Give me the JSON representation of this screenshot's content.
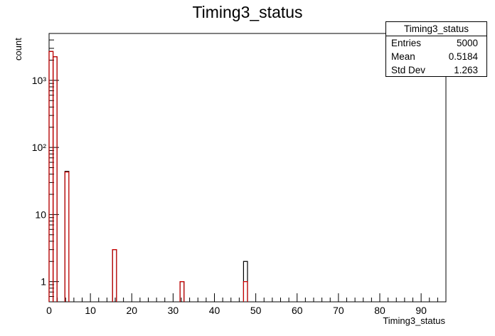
{
  "chart_data": {
    "type": "bar",
    "title": "Timing3_status",
    "xlabel": "Timing3_status",
    "ylabel": "count",
    "xlim": [
      0,
      96
    ],
    "ylim": [
      0.5,
      5000
    ],
    "log_y": true,
    "grid": false,
    "x_ticks": [
      0,
      10,
      20,
      30,
      40,
      50,
      60,
      70,
      80,
      90
    ],
    "y_ticks": [
      {
        "value": 1,
        "label": "1"
      },
      {
        "value": 10,
        "label": "10"
      },
      {
        "value": 100,
        "label": "10²"
      },
      {
        "value": 1000,
        "label": "10³"
      }
    ],
    "bin_width": 0.96,
    "series": [
      {
        "color": "#000000",
        "bins": [
          {
            "x": 0.0,
            "value": 2700
          },
          {
            "x": 0.96,
            "value": 2250
          },
          {
            "x": 3.84,
            "value": 44
          },
          {
            "x": 15.36,
            "value": 3
          },
          {
            "x": 31.68,
            "value": 1
          },
          {
            "x": 47.04,
            "value": 2
          }
        ]
      },
      {
        "color": "#cc0000",
        "bins": [
          {
            "x": 0.0,
            "value": 2700
          },
          {
            "x": 0.96,
            "value": 2250
          },
          {
            "x": 3.84,
            "value": 43
          },
          {
            "x": 15.36,
            "value": 3
          },
          {
            "x": 31.68,
            "value": 1
          },
          {
            "x": 47.04,
            "value": 1
          }
        ]
      }
    ]
  },
  "stats": {
    "title": "Timing3_status",
    "rows": [
      {
        "label": "Entries",
        "value": "5000"
      },
      {
        "label": "Mean",
        "value": "0.5184"
      },
      {
        "label": "Std Dev",
        "value": "1.263"
      }
    ]
  }
}
